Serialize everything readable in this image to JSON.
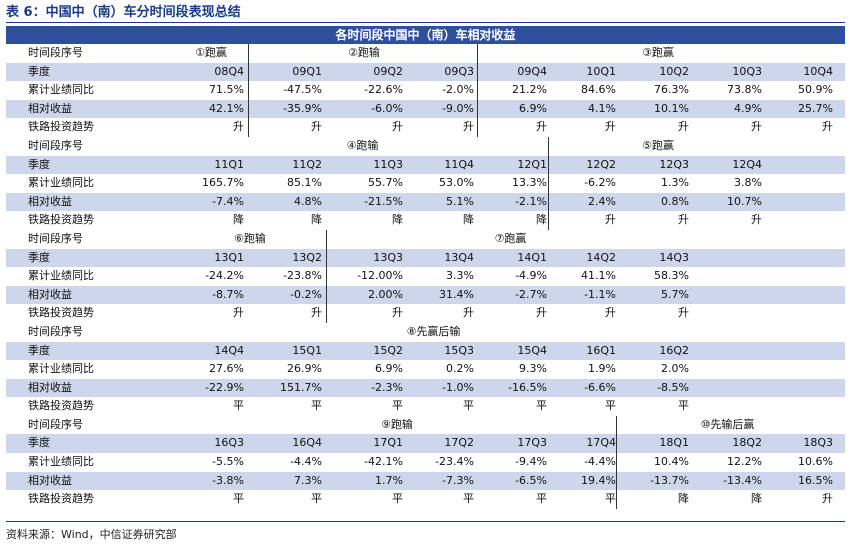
{
  "title": "表 6：中国中（南）车分时间段表现总结",
  "table_heading": "各时间段中国中（南）车相对收益",
  "row_labels": {
    "period": "时间段序号",
    "quarter": "季度",
    "growth": "累计业绩同比",
    "rel": "相对收益",
    "rail": "铁路投资趋势"
  },
  "blocks": [
    {
      "groups": [
        {
          "label": "①跑赢",
          "col": 0,
          "span": 1
        },
        {
          "label": "②跑输",
          "col": 1,
          "span": 3
        },
        {
          "label": "③跑赢",
          "col": 4,
          "span": 5
        }
      ],
      "quarters": [
        "08Q4",
        "09Q1",
        "09Q2",
        "09Q3",
        "09Q4",
        "10Q1",
        "10Q2",
        "10Q3",
        "10Q4"
      ],
      "growth": [
        "71.5%",
        "-47.5%",
        "-22.6%",
        "-2.0%",
        "21.2%",
        "84.6%",
        "76.3%",
        "73.8%",
        "50.9%"
      ],
      "rel": [
        "42.1%",
        "-35.9%",
        "-6.0%",
        "-9.0%",
        "6.9%",
        "4.1%",
        "10.1%",
        "4.9%",
        "25.7%"
      ],
      "rail": [
        "升",
        "升",
        "升",
        "升",
        "升",
        "升",
        "升",
        "升",
        "升"
      ]
    },
    {
      "groups": [
        {
          "label": "④跑输",
          "col": 0,
          "span": 5
        },
        {
          "label": "⑤跑赢",
          "col": 5,
          "span": 3
        }
      ],
      "quarters": [
        "11Q1",
        "11Q2",
        "11Q3",
        "11Q4",
        "12Q1",
        "12Q2",
        "12Q3",
        "12Q4",
        ""
      ],
      "growth": [
        "165.7%",
        "85.1%",
        "55.7%",
        "53.0%",
        "13.3%",
        "-6.2%",
        "1.3%",
        "3.8%",
        ""
      ],
      "rel": [
        "-7.4%",
        "4.8%",
        "-21.5%",
        "5.1%",
        "-2.1%",
        "2.4%",
        "0.8%",
        "10.7%",
        ""
      ],
      "rail": [
        "降",
        "降",
        "降",
        "降",
        "降",
        "升",
        "升",
        "升",
        ""
      ]
    },
    {
      "groups": [
        {
          "label": "⑥跑输",
          "col": 0,
          "span": 2
        },
        {
          "label": "⑦跑赢",
          "col": 2,
          "span": 5
        }
      ],
      "quarters": [
        "13Q1",
        "13Q2",
        "13Q3",
        "13Q4",
        "14Q1",
        "14Q2",
        "14Q3",
        "",
        ""
      ],
      "growth": [
        "-24.2%",
        "-23.8%",
        "-12.00%",
        "3.3%",
        "-4.9%",
        "41.1%",
        "58.3%",
        "",
        ""
      ],
      "rel": [
        "-8.7%",
        "-0.2%",
        "2.00%",
        "31.4%",
        "-2.7%",
        "-1.1%",
        "5.7%",
        "",
        ""
      ],
      "rail": [
        "升",
        "升",
        "升",
        "升",
        "升",
        "升",
        "升",
        "",
        ""
      ]
    },
    {
      "groups": [
        {
          "label": "⑧先赢后输",
          "col": 0,
          "span": 7
        }
      ],
      "quarters": [
        "14Q4",
        "15Q1",
        "15Q2",
        "15Q3",
        "15Q4",
        "16Q1",
        "16Q2",
        "",
        ""
      ],
      "growth": [
        "27.6%",
        "26.9%",
        "6.9%",
        "0.2%",
        "9.3%",
        "1.9%",
        "2.0%",
        "",
        ""
      ],
      "rel": [
        "-22.9%",
        "151.7%",
        "-2.3%",
        "-1.0%",
        "-16.5%",
        "-6.6%",
        "-8.5%",
        "",
        ""
      ],
      "rail": [
        "平",
        "平",
        "平",
        "平",
        "平",
        "平",
        "平",
        "",
        ""
      ]
    },
    {
      "groups": [
        {
          "label": "⑨跑输",
          "col": 0,
          "span": 6
        },
        {
          "label": "⑩先输后赢",
          "col": 6,
          "span": 3
        }
      ],
      "quarters": [
        "16Q3",
        "16Q4",
        "17Q1",
        "17Q2",
        "17Q3",
        "17Q4",
        "18Q1",
        "18Q2",
        "18Q3"
      ],
      "growth": [
        "-5.5%",
        "-4.4%",
        "-42.1%",
        "-23.4%",
        "-9.4%",
        "-4.4%",
        "10.4%",
        "12.2%",
        "10.6%"
      ],
      "rel": [
        "-3.8%",
        "7.3%",
        "1.7%",
        "-7.3%",
        "-6.5%",
        "19.4%",
        "-13.7%",
        "-13.4%",
        "16.5%"
      ],
      "rail": [
        "平",
        "平",
        "平",
        "平",
        "平",
        "平",
        "降",
        "降",
        "升"
      ]
    }
  ],
  "source": "资料来源：Wind，中信证券研究部"
}
